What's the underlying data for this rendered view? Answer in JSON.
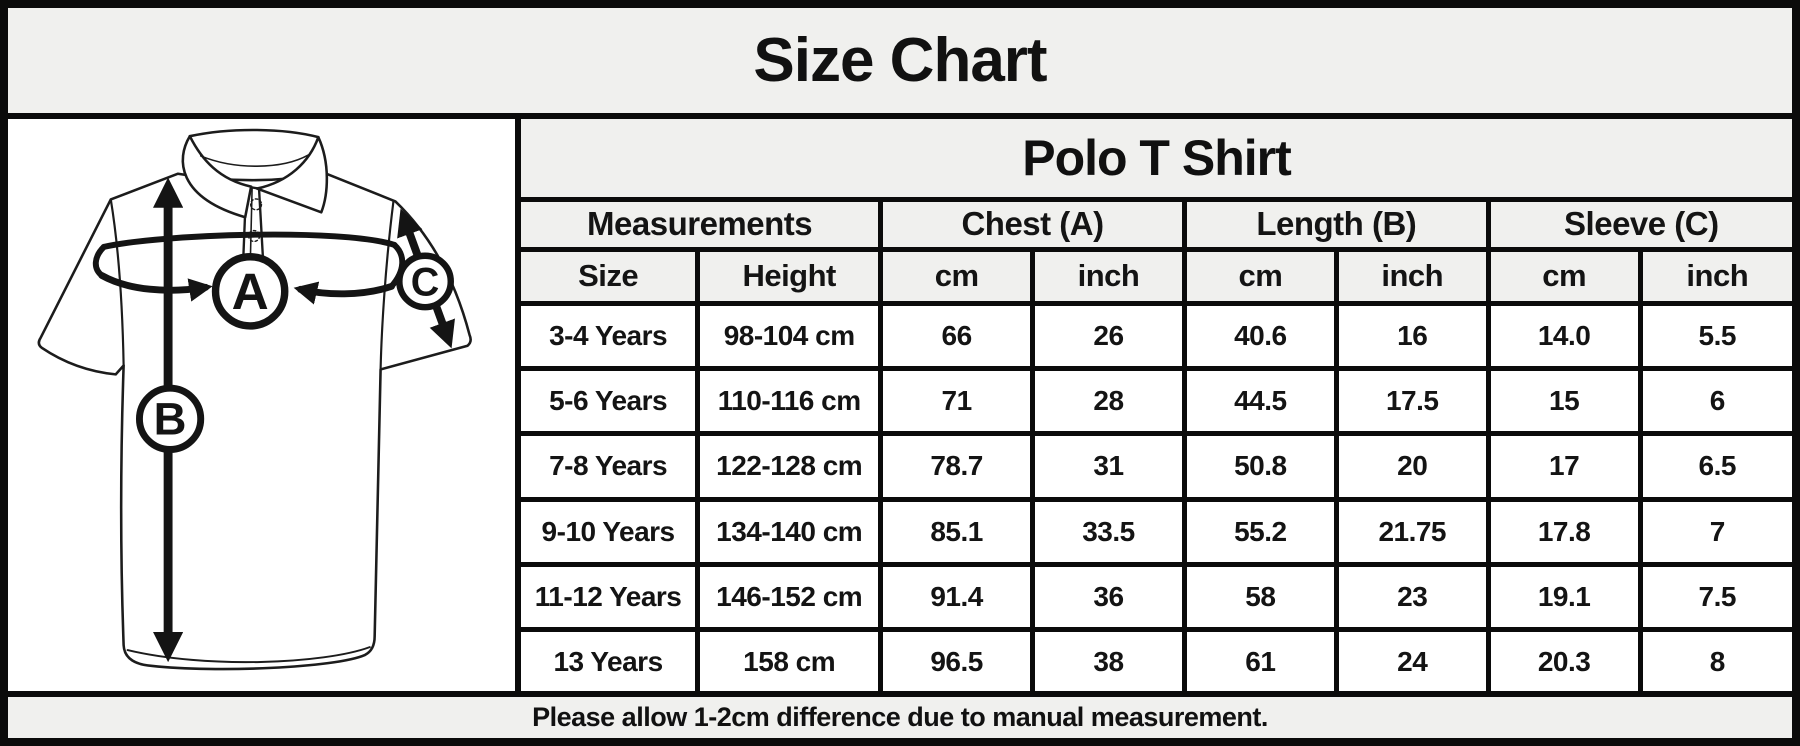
{
  "title": "Size Chart",
  "diagram": {
    "description": "polo shirt line drawing with measurement arrows",
    "labels": {
      "chest": "A",
      "length": "B",
      "sleeve": "C"
    }
  },
  "table": {
    "product_title": "Polo T Shirt",
    "group_headers": [
      {
        "label": "Measurements"
      },
      {
        "label": "Chest (A)"
      },
      {
        "label": "Length (B)"
      },
      {
        "label": "Sleeve (C)"
      }
    ],
    "sub_headers": [
      "Size",
      "Height",
      "cm",
      "inch",
      "cm",
      "inch",
      "cm",
      "inch"
    ],
    "rows": [
      [
        "3-4 Years",
        "98-104 cm",
        "66",
        "26",
        "40.6",
        "16",
        "14.0",
        "5.5"
      ],
      [
        "5-6 Years",
        "110-116 cm",
        "71",
        "28",
        "44.5",
        "17.5",
        "15",
        "6"
      ],
      [
        "7-8 Years",
        "122-128 cm",
        "78.7",
        "31",
        "50.8",
        "20",
        "17",
        "6.5"
      ],
      [
        "9-10 Years",
        "134-140 cm",
        "85.1",
        "33.5",
        "55.2",
        "21.75",
        "17.8",
        "7"
      ],
      [
        "11-12 Years",
        "146-152 cm",
        "91.4",
        "36",
        "58",
        "23",
        "19.1",
        "7.5"
      ],
      [
        "13 Years",
        "158 cm",
        "96.5",
        "38",
        "61",
        "24",
        "20.3",
        "8"
      ]
    ]
  },
  "footer": {
    "note": "Please allow 1-2cm difference due to manual measurement."
  },
  "colors": {
    "header_bg": "#f0f0ee",
    "row_bg": "#ffffff",
    "border": "#0b0b0b",
    "ink": "#141414"
  },
  "chart_data": {
    "type": "table",
    "title": "Size Chart",
    "subtitle": "Polo T Shirt",
    "column_groups": [
      "Measurements",
      "Chest (A)",
      "Length (B)",
      "Sleeve (C)"
    ],
    "columns": [
      "Size",
      "Height",
      "Chest cm",
      "Chest inch",
      "Length cm",
      "Length inch",
      "Sleeve cm",
      "Sleeve inch"
    ],
    "rows": [
      [
        "3-4 Years",
        "98-104 cm",
        66,
        26,
        40.6,
        16,
        14.0,
        5.5
      ],
      [
        "5-6 Years",
        "110-116 cm",
        71,
        28,
        44.5,
        17.5,
        15,
        6
      ],
      [
        "7-8 Years",
        "122-128 cm",
        78.7,
        31,
        50.8,
        20,
        17,
        6.5
      ],
      [
        "9-10 Years",
        "134-140 cm",
        85.1,
        33.5,
        55.2,
        21.75,
        17.8,
        7
      ],
      [
        "11-12 Years",
        "146-152 cm",
        91.4,
        36,
        58,
        23,
        19.1,
        7.5
      ],
      [
        "13 Years",
        "158 cm",
        96.5,
        38,
        61,
        24,
        20.3,
        8
      ]
    ],
    "note": "Please allow 1-2cm difference due to manual measurement."
  }
}
